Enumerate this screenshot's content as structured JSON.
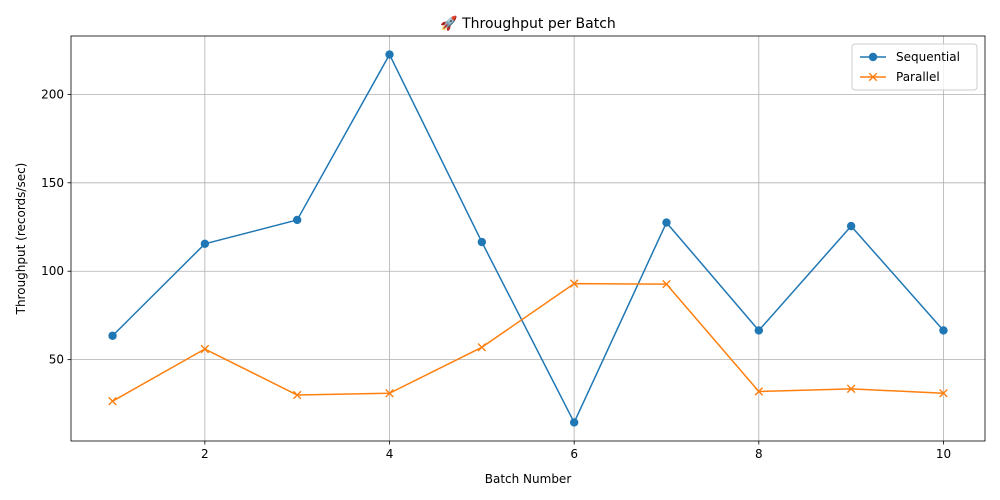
{
  "chart_data": {
    "type": "line",
    "title": "🚀 Throughput per Batch",
    "xlabel": "Batch Number",
    "ylabel": "Throughput (records/sec)",
    "x": [
      1,
      2,
      3,
      4,
      5,
      6,
      7,
      8,
      9,
      10
    ],
    "xlim": [
      0.55,
      10.45
    ],
    "ylim": [
      4,
      233
    ],
    "xticks": [
      2,
      4,
      6,
      8,
      10
    ],
    "yticks": [
      50,
      100,
      150,
      200
    ],
    "grid": true,
    "legend_position": "upper right",
    "series": [
      {
        "name": "Sequential",
        "color": "#1f77b4",
        "marker": "circle",
        "values": [
          63.5,
          115.5,
          129,
          222.5,
          116.5,
          14.5,
          127.5,
          66.5,
          125.5,
          66.5
        ]
      },
      {
        "name": "Parallel",
        "color": "#ff7f0e",
        "marker": "x",
        "values": [
          26.5,
          56,
          30,
          31,
          57,
          93,
          92.7,
          32,
          33.5,
          31
        ]
      }
    ]
  }
}
